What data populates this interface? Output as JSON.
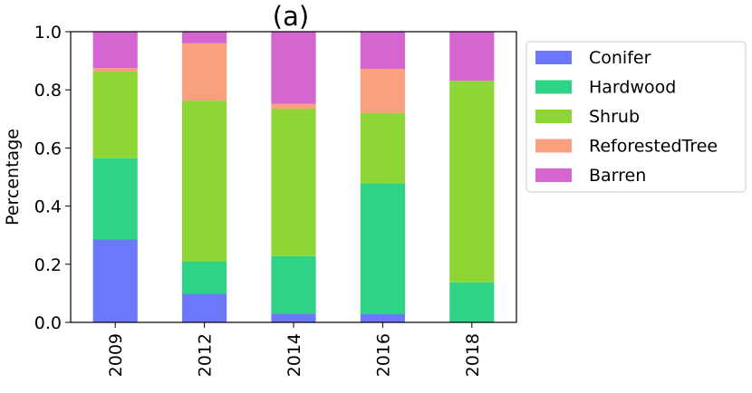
{
  "chart_data": {
    "type": "bar",
    "stacked": true,
    "title": "(a)",
    "xlabel": "",
    "ylabel": "Percentage",
    "ylim": [
      0,
      1.0
    ],
    "yticks": [
      0.0,
      0.2,
      0.4,
      0.6,
      0.8,
      1.0
    ],
    "ytick_labels": [
      "0.0",
      "0.2",
      "0.4",
      "0.6",
      "0.8",
      "1.0"
    ],
    "categories": [
      "2009",
      "2012",
      "2014",
      "2016",
      "2018"
    ],
    "legend_position": "right, outside plot",
    "grid": false,
    "series": [
      {
        "name": "Conifer",
        "color": "#6b78fa",
        "values": [
          0.285,
          0.098,
          0.03,
          0.028,
          0.0
        ]
      },
      {
        "name": "Hardwood",
        "color": "#2fd386",
        "values": [
          0.28,
          0.112,
          0.198,
          0.45,
          0.138
        ]
      },
      {
        "name": "Shrub",
        "color": "#8ed636",
        "values": [
          0.298,
          0.553,
          0.507,
          0.242,
          0.693
        ]
      },
      {
        "name": "ReforestedTree",
        "color": "#f9a07e",
        "values": [
          0.012,
          0.197,
          0.017,
          0.152,
          0.0
        ]
      },
      {
        "name": "Barren",
        "color": "#d465d1",
        "values": [
          0.125,
          0.04,
          0.248,
          0.128,
          0.169
        ]
      }
    ]
  }
}
